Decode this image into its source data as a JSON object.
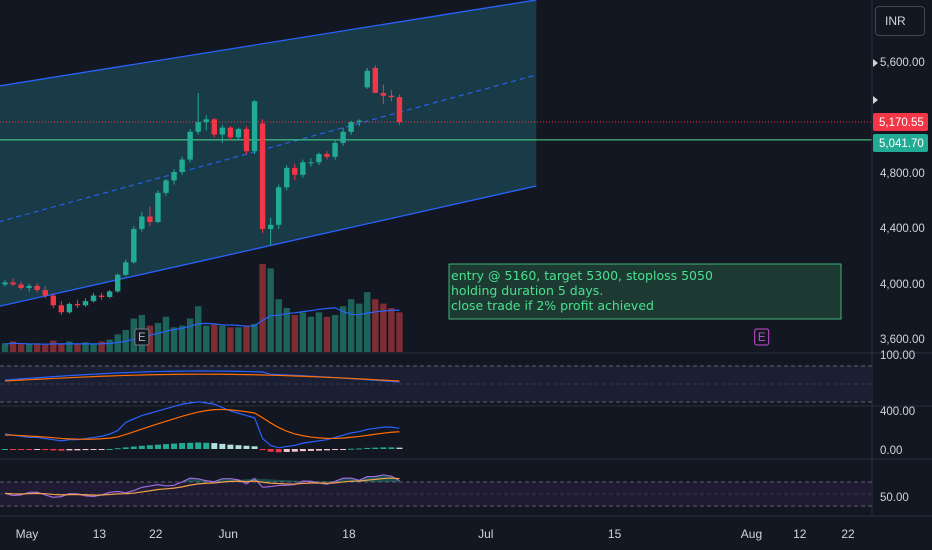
{
  "currency": "INR",
  "chart_data": {
    "type": "candlestick",
    "price_axis": {
      "ticks": [
        "5,600.00",
        "4,800.00",
        "4,400.00",
        "4,000.00",
        "3,600.00"
      ],
      "tick_values": [
        5600,
        4800,
        4400,
        4000,
        3600
      ]
    },
    "last_price_label": "5,170.55",
    "last_price": 5170.55,
    "level_label": "5,041.70",
    "level_price": 5041.7,
    "date_axis": {
      "labels": [
        "May",
        "13",
        "22",
        "Jun",
        "18",
        "Jul",
        "15",
        "Aug",
        "12",
        "22"
      ],
      "offsets": [
        -1,
        8,
        15,
        24,
        39,
        56,
        72,
        89,
        95,
        101
      ]
    },
    "candles": [
      [
        4000,
        4030,
        3985,
        4015
      ],
      [
        4015,
        4045,
        3990,
        4000
      ],
      [
        4000,
        4020,
        3960,
        3975
      ],
      [
        3975,
        4005,
        3950,
        3990
      ],
      [
        3990,
        4010,
        3940,
        3960
      ],
      [
        3960,
        3990,
        3900,
        3920
      ],
      [
        3920,
        3935,
        3830,
        3850
      ],
      [
        3850,
        3880,
        3780,
        3800
      ],
      [
        3800,
        3870,
        3790,
        3860
      ],
      [
        3860,
        3890,
        3830,
        3850
      ],
      [
        3850,
        3900,
        3840,
        3880
      ],
      [
        3880,
        3940,
        3870,
        3920
      ],
      [
        3920,
        3940,
        3890,
        3910
      ],
      [
        3910,
        3960,
        3900,
        3950
      ],
      [
        3950,
        4080,
        3940,
        4070
      ],
      [
        4070,
        4180,
        4060,
        4160
      ],
      [
        4160,
        4420,
        4150,
        4400
      ],
      [
        4400,
        4520,
        4380,
        4490
      ],
      [
        4490,
        4560,
        4420,
        4450
      ],
      [
        4450,
        4680,
        4440,
        4660
      ],
      [
        4660,
        4760,
        4640,
        4750
      ],
      [
        4750,
        4830,
        4720,
        4810
      ],
      [
        4810,
        4920,
        4790,
        4900
      ],
      [
        4900,
        5120,
        4880,
        5100
      ],
      [
        5100,
        5380,
        5080,
        5170
      ],
      [
        5170,
        5220,
        5110,
        5190
      ],
      [
        5190,
        5200,
        5060,
        5080
      ],
      [
        5080,
        5150,
        5020,
        5130
      ],
      [
        5130,
        5140,
        5040,
        5060
      ],
      [
        5060,
        5130,
        5040,
        5120
      ],
      [
        5120,
        5140,
        4940,
        4960
      ],
      [
        4960,
        5330,
        4940,
        5320
      ],
      [
        5160,
        5190,
        4370,
        4400
      ],
      [
        4400,
        4480,
        4280,
        4430
      ],
      [
        4430,
        4720,
        4400,
        4700
      ],
      [
        4700,
        4860,
        4680,
        4840
      ],
      [
        4840,
        4870,
        4750,
        4790
      ],
      [
        4790,
        4900,
        4770,
        4880
      ],
      [
        4880,
        4910,
        4850,
        4880
      ],
      [
        4880,
        4950,
        4860,
        4940
      ],
      [
        4940,
        4960,
        4900,
        4920
      ],
      [
        4920,
        5040,
        4900,
        5020
      ],
      [
        5020,
        5130,
        5000,
        5100
      ],
      [
        5100,
        5180,
        5080,
        5170
      ],
      [
        5170,
        5190,
        5140,
        5180
      ],
      [
        5420,
        5560,
        5410,
        5540
      ],
      [
        5560,
        5580,
        5380,
        5380
      ],
      [
        5380,
        5440,
        5300,
        5360
      ],
      [
        5360,
        5400,
        5320,
        5350
      ],
      [
        5350,
        5370,
        5150,
        5170
      ]
    ],
    "volumes": [
      0.1,
      0.12,
      0.1,
      0.09,
      0.1,
      0.08,
      0.13,
      0.1,
      0.12,
      0.09,
      0.11,
      0.1,
      0.12,
      0.14,
      0.2,
      0.25,
      0.38,
      0.42,
      0.3,
      0.33,
      0.4,
      0.28,
      0.3,
      0.38,
      0.52,
      0.3,
      0.32,
      0.3,
      0.28,
      0.28,
      0.3,
      0.32,
      1.0,
      0.95,
      0.6,
      0.5,
      0.42,
      0.45,
      0.4,
      0.45,
      0.4,
      0.42,
      0.52,
      0.6,
      0.55,
      0.68,
      0.6,
      0.55,
      0.5,
      0.45
    ],
    "channel": {
      "upper": [
        [
          -4,
          5400
        ],
        [
          66,
          6050
        ]
      ],
      "mid": [
        [
          -4,
          4400
        ],
        [
          66,
          5510
        ]
      ],
      "lower": [
        [
          -4,
          3800
        ],
        [
          66,
          4710
        ]
      ]
    },
    "annotation": {
      "lines": [
        "entry @ 5160, target 5300, stoploss 5050",
        "holding duration 5 days.",
        "close trade if 2% profit achieved"
      ]
    },
    "earnings_markers": [
      {
        "label": "E",
        "offset": 17,
        "past": true
      },
      {
        "label": "E",
        "offset": 94,
        "past": false
      }
    ],
    "pane1_ticks": [
      "100.00"
    ],
    "pane2_ticks": [
      "400.00",
      "0.00"
    ],
    "pane2_macd": [
      0,
      -5,
      -10,
      -15,
      -15,
      -20,
      -25,
      -30,
      -25,
      -25,
      -20,
      -15,
      -10,
      0,
      15,
      30,
      45,
      60,
      70,
      80,
      90,
      100,
      110,
      115,
      120,
      115,
      110,
      95,
      80,
      70,
      60,
      50,
      -20,
      -50,
      -60,
      -55,
      -50,
      -40,
      -35,
      -30,
      -25,
      -15,
      -5,
      5,
      10,
      20,
      25,
      30,
      30,
      25
    ],
    "pane3_ticks": [
      "50.00"
    ]
  }
}
